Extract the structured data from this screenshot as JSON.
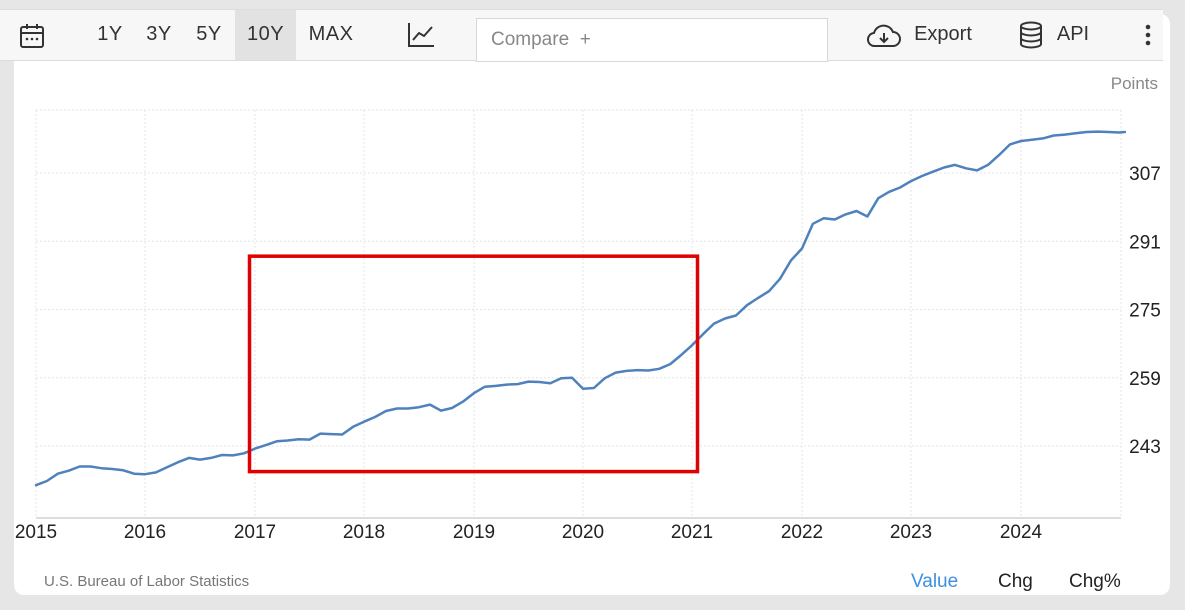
{
  "toolbar": {
    "ranges": [
      "1Y",
      "3Y",
      "5Y",
      "10Y",
      "MAX"
    ],
    "active_range": "10Y",
    "compare_placeholder": "Compare  +",
    "export_label": "Export",
    "api_label": "API",
    "icons": [
      "calendar-icon",
      "line-chart-icon",
      "cloud-download-icon",
      "database-icon",
      "more-vertical-icon"
    ]
  },
  "units_label": "Points",
  "source": "U.S. Bureau of Labor Statistics",
  "modes": [
    "Value",
    "Chg",
    "Chg%"
  ],
  "active_mode": "Value",
  "colors": {
    "line": "#4f81bd",
    "highlight": "#e00000",
    "active_mode": "#3d8fe0"
  },
  "chart_data": {
    "type": "line",
    "x_ticks": [
      "2015",
      "2016",
      "2017",
      "2018",
      "2019",
      "2020",
      "2021",
      "2022",
      "2023",
      "2024"
    ],
    "y_ticks": [
      243,
      259,
      275,
      291,
      307
    ],
    "ylim": [
      232,
      325
    ],
    "xlim": [
      2015.0,
      2024.95
    ],
    "grid": true,
    "series": [
      {
        "x": [
          2015.0,
          2015.1,
          2015.2,
          2015.3,
          2015.4,
          2015.5,
          2015.6,
          2015.7,
          2015.8,
          2015.9,
          2016.0,
          2016.1,
          2016.2,
          2016.3,
          2016.4,
          2016.5,
          2016.6,
          2016.7,
          2016.8,
          2016.9,
          2017.0,
          2017.1,
          2017.2,
          2017.3,
          2017.4,
          2017.5,
          2017.6,
          2017.7,
          2017.8,
          2017.9,
          2018.0,
          2018.1,
          2018.2,
          2018.3,
          2018.4,
          2018.5,
          2018.6,
          2018.7,
          2018.8,
          2018.9,
          2019.0,
          2019.1,
          2019.2,
          2019.3,
          2019.4,
          2019.5,
          2019.6,
          2019.7,
          2019.8,
          2019.9,
          2020.0,
          2020.1,
          2020.2,
          2020.3,
          2020.4,
          2020.5,
          2020.6,
          2020.7,
          2020.8,
          2020.9,
          2021.0,
          2021.1,
          2021.2,
          2021.3,
          2021.4,
          2021.5,
          2021.6,
          2021.7,
          2021.8,
          2021.9,
          2022.0,
          2022.1,
          2022.2,
          2022.3,
          2022.4,
          2022.5,
          2022.6,
          2022.7,
          2022.8,
          2022.9,
          2023.0,
          2023.1,
          2023.2,
          2023.3,
          2023.4,
          2023.5,
          2023.6,
          2023.7,
          2023.8,
          2023.9,
          2024.0,
          2024.1,
          2024.2,
          2024.3,
          2024.4,
          2024.5,
          2024.6,
          2024.7,
          2024.8,
          2024.9,
          2024.95
        ],
        "y": [
          233.8,
          234.8,
          236.5,
          237.2,
          238.2,
          238.2,
          237.8,
          237.6,
          237.3,
          236.5,
          236.4,
          236.8,
          238.0,
          239.2,
          240.2,
          239.8,
          240.2,
          240.9,
          240.8,
          241.3,
          242.4,
          243.2,
          244.1,
          244.3,
          244.6,
          244.5,
          245.9,
          245.8,
          245.7,
          247.5,
          248.7,
          249.8,
          251.2,
          251.8,
          251.8,
          252.1,
          252.7,
          251.3,
          251.9,
          253.4,
          255.4,
          256.9,
          257.1,
          257.4,
          257.5,
          258.1,
          258.0,
          257.7,
          258.9,
          259.0,
          256.4,
          256.6,
          258.9,
          260.2,
          260.6,
          260.8,
          260.7,
          261.1,
          262.2,
          264.3,
          266.6,
          269.2,
          271.7,
          272.9,
          273.6,
          276.0,
          277.7,
          279.3,
          282.2,
          286.5,
          289.3,
          295.1,
          296.4,
          296.1,
          297.3,
          298.1,
          296.8,
          301.1,
          302.6,
          303.6,
          305.1,
          306.3,
          307.3,
          308.3,
          308.9,
          308.1,
          307.6,
          308.9,
          311.2,
          313.7,
          314.5,
          314.8,
          315.1,
          315.8,
          316.0,
          316.3,
          316.6,
          316.7,
          316.6,
          316.5,
          316.6
        ],
        "color": "#4f81bd"
      }
    ],
    "highlight_box": {
      "x_start": 2016.95,
      "x_end": 2021.05,
      "y_start": 237.0,
      "y_end": 287.5
    }
  }
}
